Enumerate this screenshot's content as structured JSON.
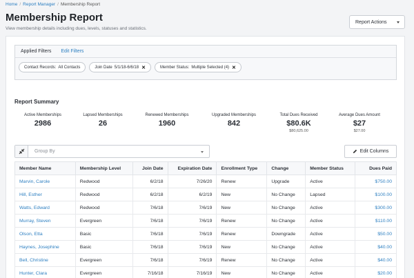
{
  "breadcrumb": {
    "home": "Home",
    "report_manager": "Report Manager",
    "current": "Membership Report"
  },
  "header": {
    "title": "Membership Report",
    "subtitle": "View membership details including dues, levels, statuses and statistics.",
    "actions_label": "Report Actions"
  },
  "filters": {
    "applied_label": "Applied Filters",
    "edit_label": "Edit Filters",
    "chips": [
      {
        "key": "Contact Records:",
        "value": "All Contacts",
        "removable": false
      },
      {
        "key": "Join Date",
        "value": "5/1/18-6/6/18",
        "removable": true
      },
      {
        "key": "Member Status:",
        "value": "Multiple Selected (4)",
        "removable": true
      }
    ]
  },
  "summary": {
    "title": "Report Summary",
    "stats": [
      {
        "label": "Active Memberships",
        "value": "2986",
        "sub": ""
      },
      {
        "label": "Lapsed Memberships",
        "value": "26",
        "sub": ""
      },
      {
        "label": "Renewed Memberships",
        "value": "1960",
        "sub": ""
      },
      {
        "label": "Upgraded Memberships",
        "value": "842",
        "sub": ""
      },
      {
        "label": "Total Dues Received",
        "value": "$80.6K",
        "sub": "$80,625.00"
      },
      {
        "label": "Average Dues Amount",
        "value": "$27",
        "sub": "$27.00"
      }
    ]
  },
  "toolbar": {
    "group_by_placeholder": "Group By",
    "edit_columns_label": "Edit Columns"
  },
  "table": {
    "columns": [
      "Member Name",
      "Membership Level",
      "Join Date",
      "Expiration Date",
      "Enrollment Type",
      "Change",
      "Member Status",
      "Dues Paid"
    ],
    "rows": [
      [
        "Marvin, Carole",
        "Redwood",
        "6/2/18",
        "7/26/20",
        "Renew",
        "Upgrade",
        "Active",
        "$750.00"
      ],
      [
        "Hill, Esther",
        "Redwood",
        "6/2/18",
        "6/2/19",
        "New",
        "No Change",
        "Lapsed",
        "$100.00"
      ],
      [
        "Watts, Edward",
        "Redwood",
        "7/6/18",
        "7/6/19",
        "New",
        "No Change",
        "Active",
        "$300.00"
      ],
      [
        "Murray, Steven",
        "Evergreen",
        "7/6/18",
        "7/6/19",
        "Renew",
        "No Change",
        "Active",
        "$110.00"
      ],
      [
        "Olson, Etta",
        "Basic",
        "7/6/18",
        "7/6/19",
        "Renew",
        "Downgrade",
        "Active",
        "$50.00"
      ],
      [
        "Haynes, Josephine",
        "Basic",
        "7/6/18",
        "7/6/19",
        "New",
        "No Change",
        "Active",
        "$40.00"
      ],
      [
        "Bell, Christine",
        "Evergreen",
        "7/6/18",
        "7/6/19",
        "Renew",
        "No Change",
        "Active",
        "$40.00"
      ],
      [
        "Hunter, Clara",
        "Evergreen",
        "7/16/18",
        "7/16/19",
        "New",
        "No Change",
        "Active",
        "$20.00"
      ]
    ]
  }
}
